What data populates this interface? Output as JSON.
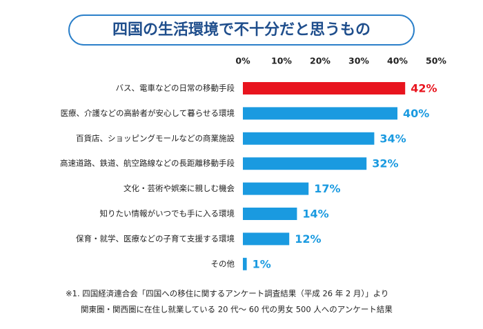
{
  "chart_data": {
    "type": "hbar",
    "title": "四国の生活環境で不十分だと思うもの",
    "categories": [
      "バス、電車などの日常の移動手段",
      "医療、介護などの高齢者が安心して暮らせる環境",
      "百貨店、ショッピングモールなどの商業施設",
      "高速道路、鉄道、航空路線などの長距離移動手段",
      "文化・芸術や娯楽に親しむ機会",
      "知りたい情報がいつでも手に入る環境",
      "保育・就学、医療などの子育て支援する環境",
      "その他"
    ],
    "values": [
      42,
      40,
      34,
      32,
      17,
      14,
      12,
      1
    ],
    "value_labels": [
      "42%",
      "40%",
      "34%",
      "32%",
      "17%",
      "14%",
      "12%",
      "1%"
    ],
    "colors": [
      "#e8141e",
      "#1a9ae0",
      "#1a9ae0",
      "#1a9ae0",
      "#1a9ae0",
      "#1a9ae0",
      "#1a9ae0",
      "#1a9ae0"
    ],
    "xlim": [
      0,
      50
    ],
    "xticks": [
      {
        "value": 0,
        "label": "0%"
      },
      {
        "value": 10,
        "label": "10%"
      },
      {
        "value": 20,
        "label": "20%"
      },
      {
        "value": 30,
        "label": "30%"
      },
      {
        "value": 40,
        "label": "40%"
      },
      {
        "value": 50,
        "label": "50%"
      }
    ],
    "notes": [
      "※1. 四国経済連合会「四国への移住に関するアンケート調査結果（平成 26 年 2 月）」より",
      "関東圏・関西圏に在住し就業している 20 代～ 60 代の男女 500 人へのアンケート結果"
    ]
  }
}
